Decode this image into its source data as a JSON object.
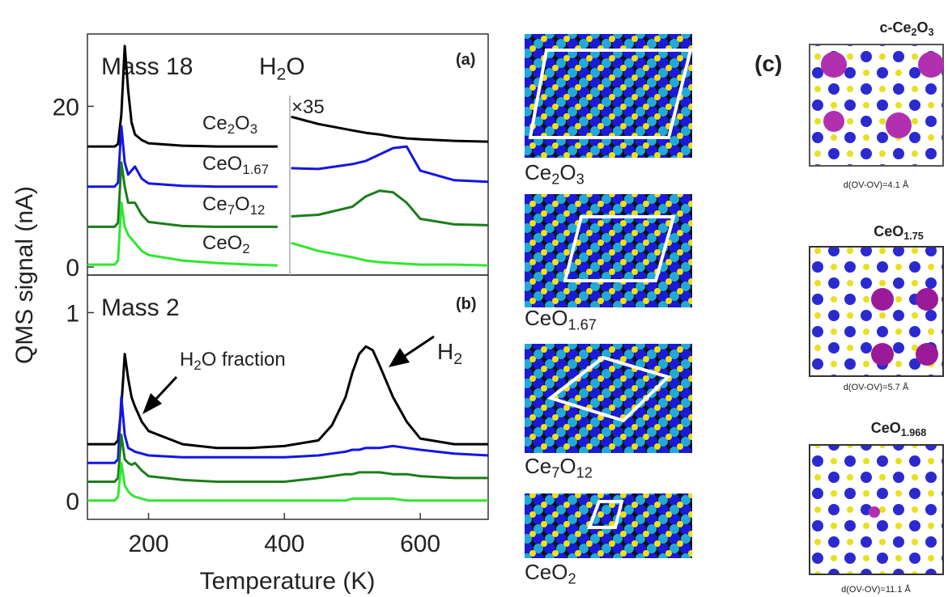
{
  "chart_data": [
    {
      "type": "line",
      "y_label": "QMS signal (nA)",
      "annotations": [
        "Mass 18",
        "H2O",
        "×35",
        "(a)"
      ],
      "x": [
        110,
        140,
        150,
        155,
        160,
        165,
        170,
        175,
        180,
        190,
        200,
        250,
        300,
        350,
        390,
        400,
        410,
        450,
        500,
        520,
        540,
        560,
        580,
        600,
        650,
        700
      ],
      "xlim": [
        110,
        700
      ],
      "ylim": [
        -1,
        29
      ],
      "yticks": [
        0,
        20
      ],
      "grid": false,
      "series": [
        {
          "name": "Ce2O3",
          "color": "#000000",
          "values": [
            15,
            15,
            15,
            15.3,
            19,
            27.5,
            22,
            18,
            16.5,
            15.8,
            15.4,
            15.1,
            15,
            15,
            15,
            null,
            18.7,
            17.8,
            17,
            16.7,
            16.5,
            16.2,
            16,
            15.9,
            15.7,
            15.6
          ]
        },
        {
          "name": "CeO1.67",
          "color": "#1414e6",
          "values": [
            10,
            10,
            10,
            10.5,
            17.5,
            13,
            11.5,
            12,
            12.5,
            11,
            10.4,
            10.1,
            10,
            10,
            10,
            null,
            12.3,
            12.2,
            12.8,
            13.2,
            14,
            14.8,
            15,
            12,
            10.8,
            10.6
          ]
        },
        {
          "name": "Ce7O12",
          "color": "#1b7d1b",
          "values": [
            5,
            5,
            5,
            5.5,
            13,
            10,
            8,
            8,
            8,
            6.5,
            5.6,
            5.1,
            5,
            5,
            5,
            null,
            6.3,
            6.5,
            7.5,
            8.8,
            9.5,
            9.3,
            8,
            6,
            5.3,
            5.2
          ]
        },
        {
          "name": "CeO2",
          "color": "#2ee82e",
          "values": [
            0.3,
            0.3,
            0.3,
            0.8,
            8,
            5,
            4,
            3.5,
            3,
            2,
            1.5,
            0.8,
            0.5,
            0.3,
            0.2,
            null,
            3,
            2,
            1.2,
            0.8,
            0.6,
            0.5,
            0.4,
            0.3,
            0.3,
            0.2
          ]
        }
      ]
    },
    {
      "type": "line",
      "x_label": "Temperature (K)",
      "annotations": [
        "Mass 2",
        "(b)",
        "H2O fraction",
        "H2"
      ],
      "x": [
        110,
        140,
        150,
        155,
        160,
        165,
        170,
        175,
        180,
        190,
        200,
        250,
        300,
        350,
        400,
        450,
        470,
        490,
        500,
        510,
        520,
        530,
        540,
        560,
        580,
        600,
        650,
        700
      ],
      "xlim": [
        110,
        700
      ],
      "xticks": [
        200,
        400,
        600
      ],
      "ylim": [
        -0.1,
        1.2
      ],
      "yticks": [
        0,
        1
      ],
      "grid": false,
      "series": [
        {
          "color": "#000000",
          "values": [
            0.3,
            0.3,
            0.3,
            0.32,
            0.5,
            0.78,
            0.65,
            0.55,
            0.5,
            0.42,
            0.37,
            0.3,
            0.28,
            0.28,
            0.29,
            0.32,
            0.4,
            0.55,
            0.68,
            0.78,
            0.82,
            0.8,
            0.72,
            0.55,
            0.42,
            0.33,
            0.3,
            0.3
          ]
        },
        {
          "color": "#1414e6",
          "values": [
            0.2,
            0.2,
            0.2,
            0.22,
            0.55,
            0.35,
            0.28,
            0.27,
            0.26,
            0.25,
            0.24,
            0.23,
            0.23,
            0.23,
            0.23,
            0.24,
            0.25,
            0.26,
            0.27,
            0.27,
            0.28,
            0.28,
            0.28,
            0.29,
            0.28,
            0.27,
            0.25,
            0.24
          ]
        },
        {
          "color": "#1b7d1b",
          "values": [
            0.1,
            0.1,
            0.1,
            0.12,
            0.35,
            0.22,
            0.2,
            0.19,
            0.2,
            0.16,
            0.13,
            0.11,
            0.1,
            0.1,
            0.1,
            0.12,
            0.13,
            0.14,
            0.14,
            0.15,
            0.15,
            0.15,
            0.15,
            0.14,
            0.14,
            0.13,
            0.12,
            0.12
          ]
        },
        {
          "color": "#2ee82e",
          "values": [
            0,
            0,
            0,
            0.02,
            0.2,
            0.08,
            0.05,
            0.03,
            0.02,
            0.01,
            0,
            0,
            0,
            0,
            0,
            0,
            0,
            0,
            0.01,
            0.01,
            0.01,
            0.01,
            0.01,
            0.01,
            0,
            0,
            0,
            0
          ]
        }
      ]
    }
  ],
  "structures": {
    "labels": [
      "Ce2O3",
      "CeO1.67",
      "Ce7O12",
      "CeO2"
    ]
  },
  "panel_c": {
    "label": "(c)",
    "items": [
      {
        "title": "c-Ce2O3",
        "distance": "d(OV-OV)=4.1 Å"
      },
      {
        "title": "CeO1.75",
        "distance": "d(OV-OV)=5.7 Å"
      },
      {
        "title": "CeO1.968",
        "distance": "d(OV-OV)=11.1 Å"
      }
    ]
  }
}
